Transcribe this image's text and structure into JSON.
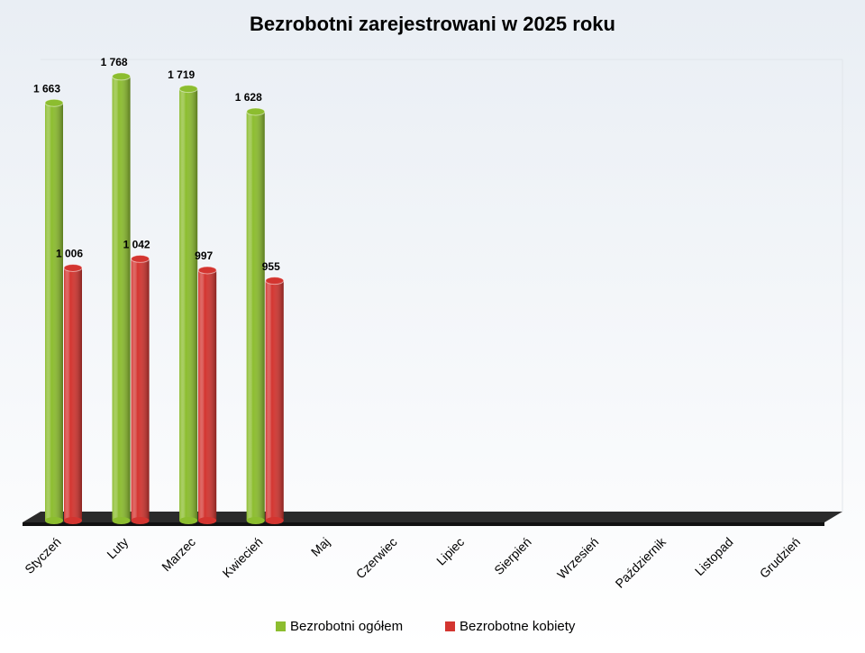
{
  "chart_data": {
    "type": "bar3d",
    "title": "Bezrobotni zarejestrowani w 2025 roku",
    "categories": [
      "Styczeń",
      "Luty",
      "Marzec",
      "Kwiecień",
      "Maj",
      "Czerwiec",
      "Lipiec",
      "Sierpień",
      "Wrzesień",
      "Październik",
      "Listopad",
      "Grudzień"
    ],
    "series": [
      {
        "name": "Bezrobotni ogółem",
        "color": "#8cbd2f",
        "values": [
          1663,
          1768,
          1719,
          1628,
          null,
          null,
          null,
          null,
          null,
          null,
          null,
          null
        ],
        "value_labels": [
          "1 663",
          "1 768",
          "1 719",
          "1 628",
          null,
          null,
          null,
          null,
          null,
          null,
          null,
          null
        ]
      },
      {
        "name": "Bezrobotne kobiety",
        "color": "#d33530",
        "values": [
          1006,
          1042,
          997,
          955,
          null,
          null,
          null,
          null,
          null,
          null,
          null,
          null
        ],
        "value_labels": [
          "1 006",
          "1 042",
          "997",
          "955",
          null,
          null,
          null,
          null,
          null,
          null,
          null,
          null
        ]
      }
    ],
    "ylim": [
      0,
      1800
    ]
  }
}
